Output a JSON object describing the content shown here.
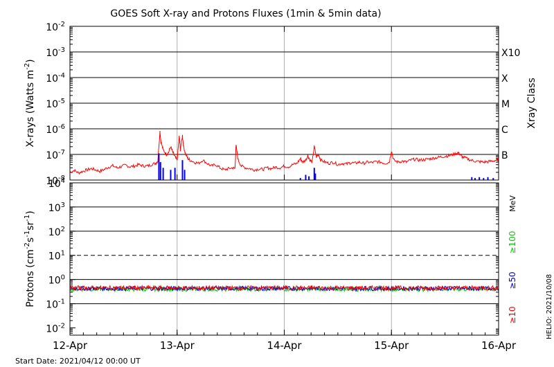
{
  "title": "GOES Soft X-ray and Protons Fluxes   (1min & 5min data)",
  "start_date": "Start Date: 2021/04/12 00:00 UT",
  "side_stamp": "HELIO: 2021/10/08",
  "chart_data": [
    {
      "panel": "xray",
      "type": "line",
      "scale": "log",
      "ylabel_base": "X-rays (Watts m",
      "ylabel_sup": "-2",
      "ylabel_end": ")",
      "ylim": [
        1e-08,
        0.01
      ],
      "y_ticks": [
        {
          "v": 0.01,
          "base": "10",
          "exp": "-2"
        },
        {
          "v": 0.001,
          "base": "10",
          "exp": "-3"
        },
        {
          "v": 0.0001,
          "base": "10",
          "exp": "-4"
        },
        {
          "v": 1e-05,
          "base": "10",
          "exp": "-5"
        },
        {
          "v": 1e-06,
          "base": "10",
          "exp": "-6"
        },
        {
          "v": 1e-07,
          "base": "10",
          "exp": "-7"
        },
        {
          "v": 1e-08,
          "base": "10",
          "exp": "-8"
        }
      ],
      "right_axis_label": "Xray Class",
      "classes": [
        {
          "label": "X10",
          "v": 0.001
        },
        {
          "label": "X",
          "v": 0.0001
        },
        {
          "label": "M",
          "v": 1e-05
        },
        {
          "label": "C",
          "v": 1e-06
        },
        {
          "label": "B",
          "v": 1e-07
        }
      ],
      "hlines": [
        0.001,
        0.0001,
        1e-05,
        1e-06,
        1e-07
      ],
      "series": [
        {
          "color": "#ff0000",
          "points": [
            [
              0.0,
              2e-08
            ],
            [
              0.04,
              2.4e-08
            ],
            [
              0.08,
              1.9e-08
            ],
            [
              0.12,
              2.2e-08
            ],
            [
              0.16,
              2.5e-08
            ],
            [
              0.2,
              2.8e-08
            ],
            [
              0.24,
              2.5e-08
            ],
            [
              0.28,
              2.2e-08
            ],
            [
              0.32,
              2.6e-08
            ],
            [
              0.36,
              3.2e-08
            ],
            [
              0.4,
              3.6e-08
            ],
            [
              0.44,
              3e-08
            ],
            [
              0.48,
              3.4e-08
            ],
            [
              0.52,
              3.8e-08
            ],
            [
              0.56,
              3.3e-08
            ],
            [
              0.6,
              3.5e-08
            ],
            [
              0.64,
              4e-08
            ],
            [
              0.68,
              3.6e-08
            ],
            [
              0.72,
              3.5e-08
            ],
            [
              0.76,
              4e-08
            ],
            [
              0.8,
              4.5e-08
            ],
            [
              0.82,
              5.5e-08
            ],
            [
              0.84,
              8e-07
            ],
            [
              0.85,
              3e-07
            ],
            [
              0.87,
              1.5e-07
            ],
            [
              0.9,
              1e-07
            ],
            [
              0.92,
              1.2e-07
            ],
            [
              0.94,
              2e-07
            ],
            [
              0.96,
              1.2e-07
            ],
            [
              0.98,
              8e-08
            ],
            [
              1.0,
              6e-08
            ],
            [
              1.02,
              5e-07
            ],
            [
              1.03,
              1.5e-07
            ],
            [
              1.05,
              5.5e-07
            ],
            [
              1.06,
              2e-07
            ],
            [
              1.08,
              1e-07
            ],
            [
              1.1,
              7e-08
            ],
            [
              1.12,
              6e-08
            ],
            [
              1.16,
              5e-08
            ],
            [
              1.2,
              4.5e-08
            ],
            [
              1.24,
              6e-08
            ],
            [
              1.28,
              4.5e-08
            ],
            [
              1.32,
              3.5e-08
            ],
            [
              1.36,
              4e-08
            ],
            [
              1.4,
              3e-08
            ],
            [
              1.44,
              2.5e-08
            ],
            [
              1.48,
              2.8e-08
            ],
            [
              1.52,
              3e-08
            ],
            [
              1.54,
              2.8e-08
            ],
            [
              1.55,
              2.2e-07
            ],
            [
              1.57,
              6e-08
            ],
            [
              1.6,
              3.5e-08
            ],
            [
              1.64,
              3e-08
            ],
            [
              1.68,
              2.8e-08
            ],
            [
              1.72,
              2.5e-08
            ],
            [
              1.76,
              2.7e-08
            ],
            [
              1.8,
              2.6e-08
            ],
            [
              1.84,
              3e-08
            ],
            [
              1.88,
              2.8e-08
            ],
            [
              1.92,
              3.2e-08
            ],
            [
              1.96,
              3e-08
            ],
            [
              2.0,
              3.5e-08
            ],
            [
              2.04,
              3.3e-08
            ],
            [
              2.08,
              4e-08
            ],
            [
              2.12,
              4.5e-08
            ],
            [
              2.15,
              7e-08
            ],
            [
              2.17,
              5e-08
            ],
            [
              2.2,
              6e-08
            ],
            [
              2.22,
              9e-08
            ],
            [
              2.24,
              6e-08
            ],
            [
              2.26,
              5e-08
            ],
            [
              2.28,
              2e-07
            ],
            [
              2.3,
              8e-08
            ],
            [
              2.32,
              1e-07
            ],
            [
              2.34,
              6e-08
            ],
            [
              2.38,
              5e-08
            ],
            [
              2.42,
              4.5e-08
            ],
            [
              2.46,
              5e-08
            ],
            [
              2.5,
              4e-08
            ],
            [
              2.54,
              4.5e-08
            ],
            [
              2.58,
              4.2e-08
            ],
            [
              2.62,
              4.8e-08
            ],
            [
              2.66,
              4.5e-08
            ],
            [
              2.7,
              5e-08
            ],
            [
              2.74,
              4.5e-08
            ],
            [
              2.78,
              5e-08
            ],
            [
              2.82,
              4.8e-08
            ],
            [
              2.86,
              5.2e-08
            ],
            [
              2.9,
              5e-08
            ],
            [
              2.94,
              4.5e-08
            ],
            [
              2.98,
              5e-08
            ],
            [
              3.0,
              1.4e-07
            ],
            [
              3.02,
              6e-08
            ],
            [
              3.06,
              5e-08
            ],
            [
              3.1,
              5.5e-08
            ],
            [
              3.14,
              5e-08
            ],
            [
              3.18,
              6e-08
            ],
            [
              3.22,
              6.5e-08
            ],
            [
              3.26,
              6e-08
            ],
            [
              3.3,
              6.2e-08
            ],
            [
              3.34,
              6.5e-08
            ],
            [
              3.38,
              7e-08
            ],
            [
              3.42,
              7.5e-08
            ],
            [
              3.46,
              8e-08
            ],
            [
              3.5,
              8.5e-08
            ],
            [
              3.54,
              9e-08
            ],
            [
              3.58,
              1e-07
            ],
            [
              3.62,
              1.2e-07
            ],
            [
              3.64,
              1e-07
            ],
            [
              3.66,
              8e-08
            ],
            [
              3.7,
              7e-08
            ],
            [
              3.74,
              6e-08
            ],
            [
              3.78,
              5.5e-08
            ],
            [
              3.82,
              5.2e-08
            ],
            [
              3.86,
              5e-08
            ],
            [
              3.9,
              5.2e-08
            ],
            [
              3.94,
              5.5e-08
            ],
            [
              3.98,
              6e-08
            ],
            [
              4.0,
              6e-08
            ]
          ]
        },
        {
          "color": "#0000ff",
          "spikes": [
            [
              0.83,
              1.1e-07
            ],
            [
              0.845,
              5e-08
            ],
            [
              0.87,
              3e-08
            ],
            [
              0.94,
              2.5e-08
            ],
            [
              0.98,
              3e-08
            ],
            [
              1.05,
              6e-08
            ],
            [
              1.07,
              2.5e-08
            ],
            [
              2.15,
              1.2e-08
            ],
            [
              2.2,
              1.6e-08
            ],
            [
              2.23,
              1.4e-08
            ],
            [
              2.28,
              3e-08
            ],
            [
              2.29,
              1.8e-08
            ],
            [
              3.75,
              1.3e-08
            ],
            [
              3.78,
              1.2e-08
            ],
            [
              3.82,
              1.3e-08
            ],
            [
              3.86,
              1.2e-08
            ],
            [
              3.9,
              1.3e-08
            ],
            [
              3.95,
              1.2e-08
            ]
          ]
        }
      ]
    },
    {
      "panel": "protons",
      "type": "line",
      "scale": "log",
      "ylabel_parts": [
        "Protons (cm",
        "-2",
        "s",
        "-1",
        "sr",
        "-1",
        ")"
      ],
      "ylim": [
        0.005,
        10000.0
      ],
      "y_ticks": [
        {
          "v": 10000.0,
          "base": "10",
          "exp": "4"
        },
        {
          "v": 1000.0,
          "base": "10",
          "exp": "3"
        },
        {
          "v": 100.0,
          "base": "10",
          "exp": "2"
        },
        {
          "v": 10.0,
          "base": "10",
          "exp": "1"
        },
        {
          "v": 1.0,
          "base": "10",
          "exp": "0"
        },
        {
          "v": 0.1,
          "base": "10",
          "exp": "-1"
        },
        {
          "v": 0.01,
          "base": "10",
          "exp": "-2"
        }
      ],
      "hlines": [
        1000.0,
        100.0,
        1.0,
        0.1
      ],
      "dashed_hline": 10.0,
      "unit_label": "MeV",
      "series": [
        {
          "name": "≥100",
          "color": "#00cc00",
          "level": 0.4
        },
        {
          "name": "≥50",
          "color": "#0000cc",
          "level": 0.43
        },
        {
          "name": "≥10",
          "color": "#ff0000",
          "level": 0.45
        }
      ]
    }
  ],
  "x_axis": {
    "range": [
      0,
      4
    ],
    "ticks": [
      {
        "v": 0,
        "label": "12-Apr"
      },
      {
        "v": 1,
        "label": "13-Apr"
      },
      {
        "v": 2,
        "label": "14-Apr"
      },
      {
        "v": 3,
        "label": "15-Apr"
      },
      {
        "v": 4,
        "label": "16-Apr"
      }
    ]
  }
}
